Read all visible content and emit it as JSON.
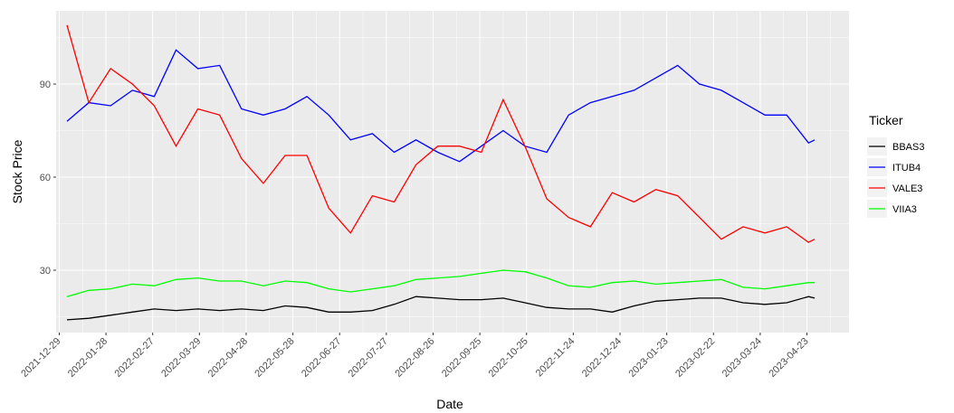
{
  "chart_data": {
    "type": "line",
    "x_label": "Date",
    "y_label": "Stock Price",
    "legend_title": "Ticker",
    "legend_position": "right",
    "grid": true,
    "x": [
      "2022-01-03",
      "2022-01-17",
      "2022-01-31",
      "2022-02-14",
      "2022-02-28",
      "2022-03-14",
      "2022-03-28",
      "2022-04-11",
      "2022-04-25",
      "2022-05-09",
      "2022-05-23",
      "2022-06-06",
      "2022-06-20",
      "2022-07-04",
      "2022-07-18",
      "2022-08-01",
      "2022-08-15",
      "2022-08-29",
      "2022-09-12",
      "2022-09-26",
      "2022-10-10",
      "2022-10-24",
      "2022-11-07",
      "2022-11-21",
      "2022-12-05",
      "2022-12-19",
      "2023-01-02",
      "2023-01-16",
      "2023-01-30",
      "2023-02-13",
      "2023-02-27",
      "2023-03-13",
      "2023-03-27",
      "2023-04-10",
      "2023-04-24",
      "2023-04-28"
    ],
    "series": [
      {
        "name": "BBAS3",
        "color": "#000000",
        "values": [
          14,
          14.5,
          15.5,
          16.5,
          17.5,
          17,
          17.5,
          17,
          17.5,
          17,
          18.5,
          18,
          16.5,
          16.5,
          17,
          19,
          21.5,
          21,
          20.5,
          20.5,
          21,
          19.5,
          18,
          17.5,
          17.5,
          16.5,
          18.5,
          20,
          20.5,
          21,
          21,
          19.5,
          19,
          19.5,
          21.5,
          21
        ]
      },
      {
        "name": "ITUB4",
        "color": "#0000ff",
        "values": [
          78,
          84,
          83,
          88,
          86,
          101,
          95,
          96,
          82,
          80,
          82,
          86,
          80,
          72,
          74,
          68,
          72,
          68,
          65,
          70,
          75,
          70,
          68,
          80,
          84,
          86,
          88,
          92,
          96,
          90,
          88,
          84,
          80,
          80,
          71,
          72
        ]
      },
      {
        "name": "VALE3",
        "color": "#ff0000",
        "values": [
          109,
          84,
          95,
          90,
          83,
          70,
          82,
          80,
          66,
          58,
          67,
          67,
          50,
          42,
          54,
          52,
          64,
          70,
          70,
          68,
          85,
          70,
          53,
          47,
          44,
          55,
          52,
          56,
          54,
          47,
          40,
          44,
          42,
          44,
          39,
          40
        ]
      },
      {
        "name": "VIIA3",
        "color": "#00ff00",
        "values": [
          21.5,
          23.5,
          24,
          25.5,
          25,
          27,
          27.5,
          26.5,
          26.5,
          25,
          26.5,
          26,
          24,
          23,
          24,
          25,
          27,
          27.5,
          28,
          29,
          30,
          29.5,
          27.5,
          25,
          24.5,
          26,
          26.5,
          25.5,
          26,
          26.5,
          27,
          24.5,
          24,
          25,
          26,
          26
        ]
      }
    ],
    "xlim": [
      "2021-12-27",
      "2023-05-20"
    ],
    "xticks": [
      "2021-12-29",
      "2022-01-28",
      "2022-02-27",
      "2022-03-29",
      "2022-04-28",
      "2022-05-28",
      "2022-06-27",
      "2022-07-27",
      "2022-08-26",
      "2022-09-25",
      "2022-10-25",
      "2022-11-24",
      "2022-12-24",
      "2023-01-23",
      "2023-02-22",
      "2023-03-24",
      "2023-04-23"
    ],
    "ylim": [
      9.9,
      113.6
    ],
    "yticks": [
      30,
      60,
      90
    ]
  }
}
